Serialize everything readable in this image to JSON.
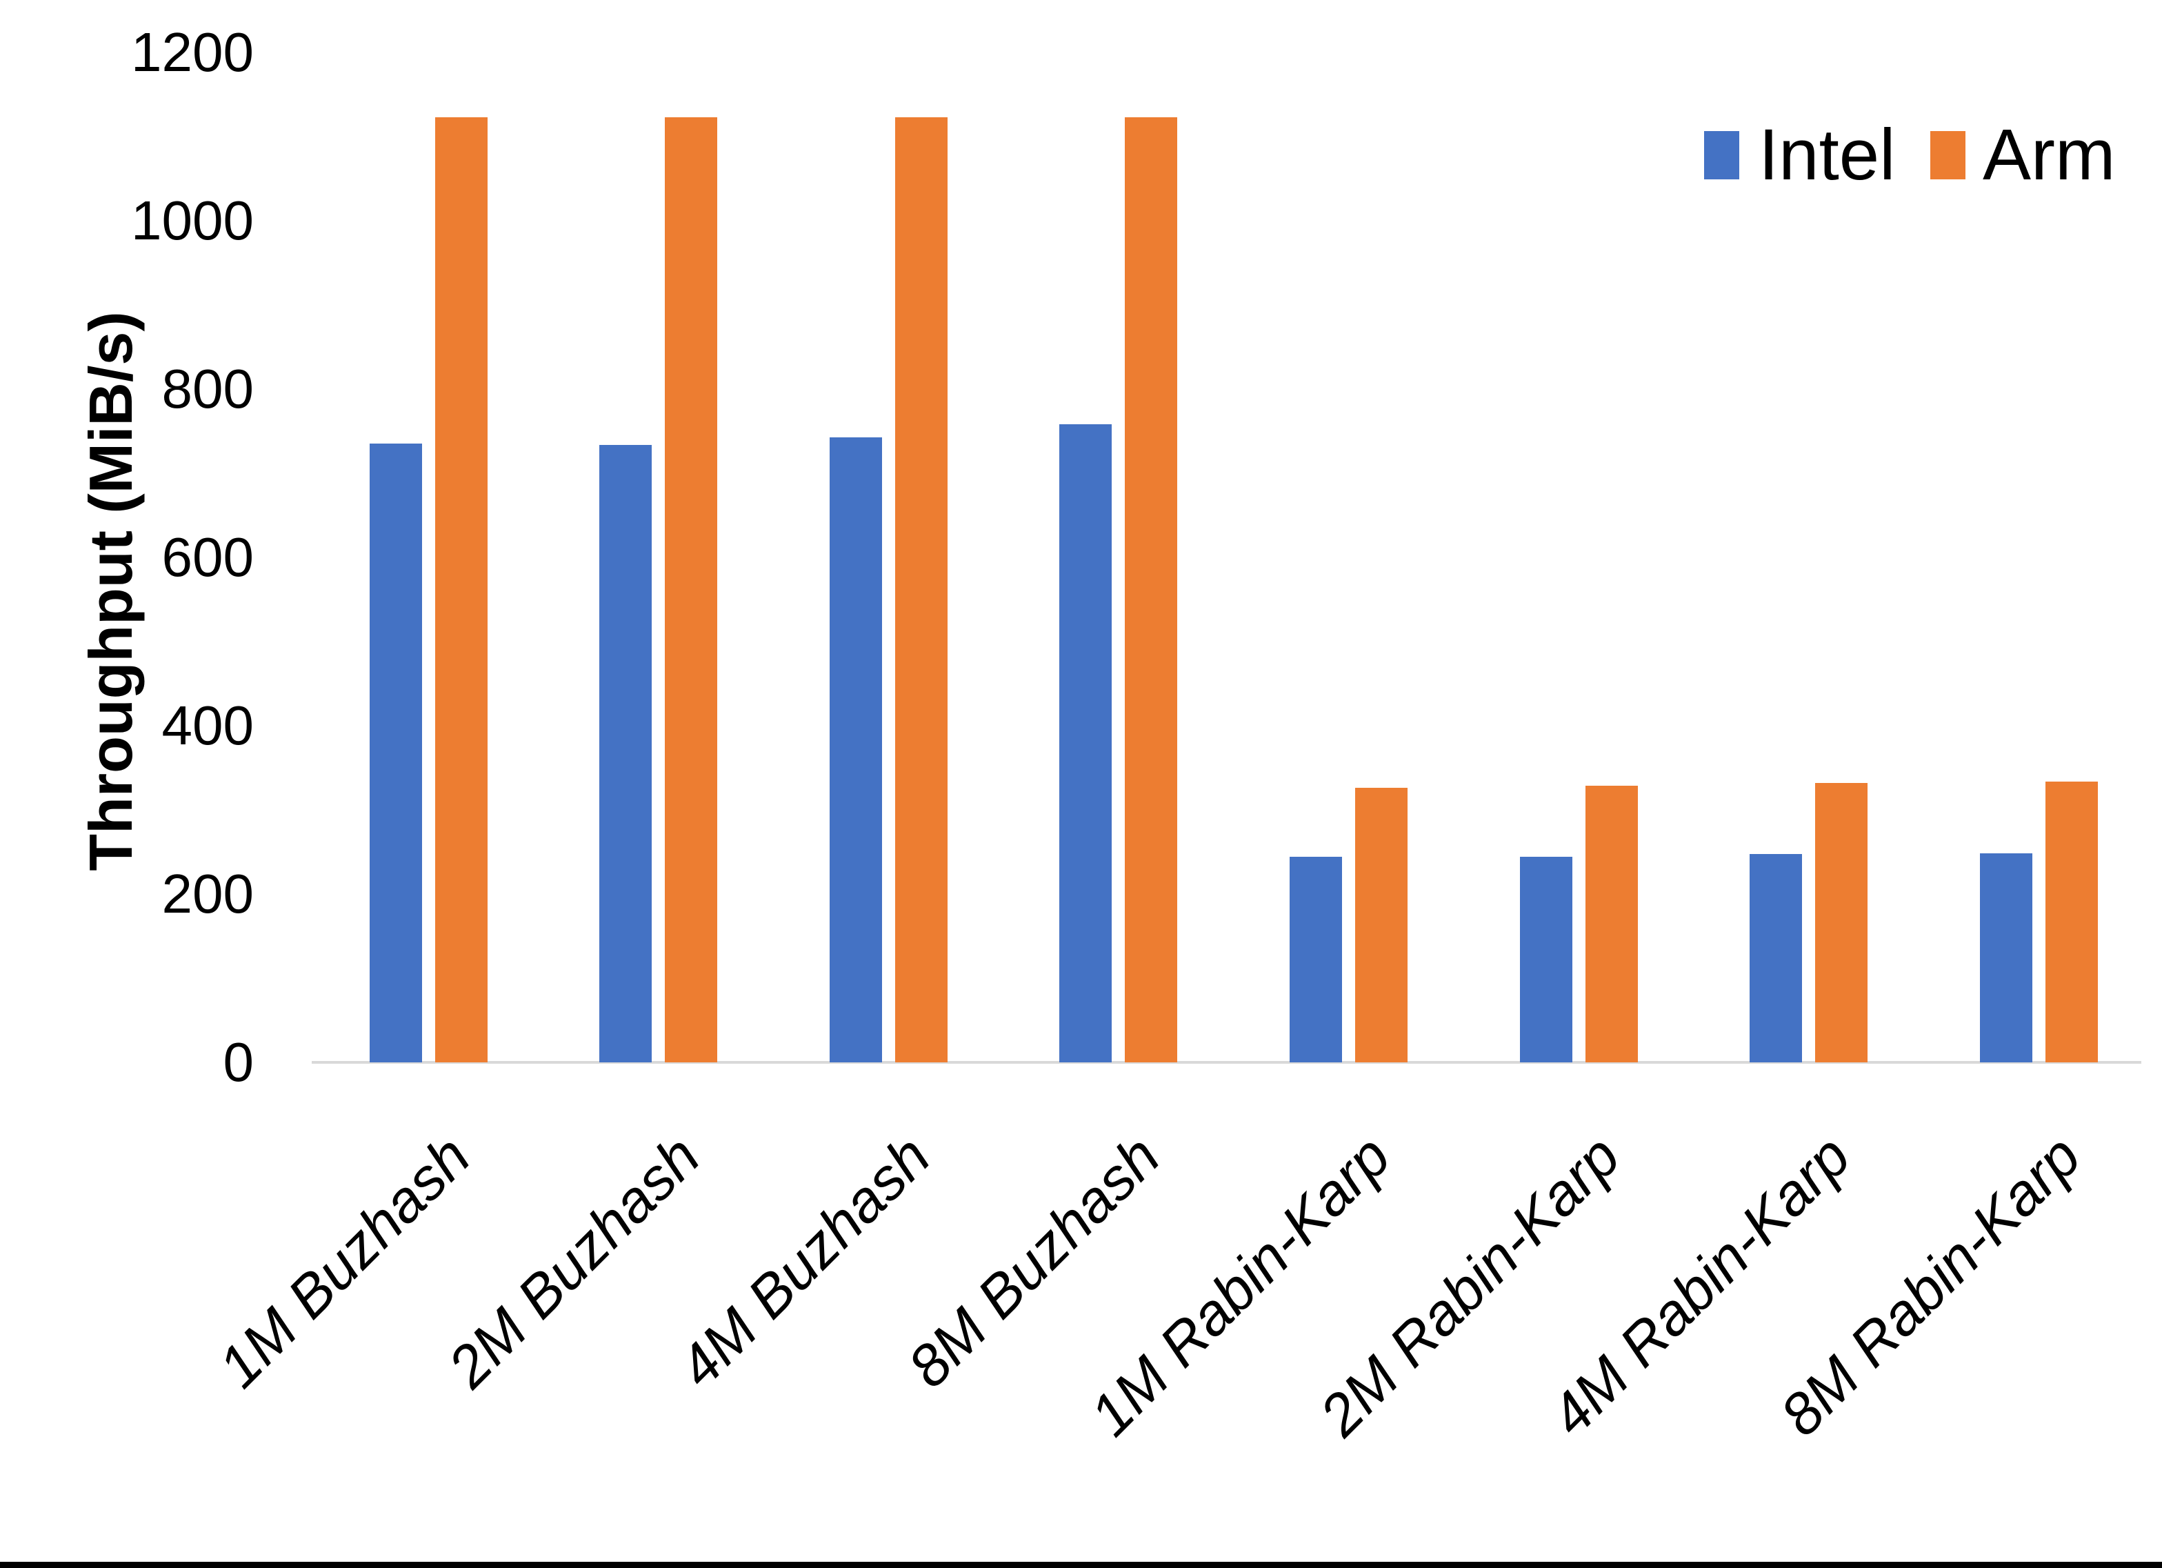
{
  "chart_data": {
    "type": "bar",
    "title": "",
    "xlabel": "",
    "ylabel": "Throughput (MiB/s)",
    "categories": [
      "1M Buzhash",
      "2M Buzhash",
      "4M Buzhash",
      "8M Buzhash",
      "1M Rabin-Karp",
      "2M Rabin-Karp",
      "4M Rabin-Karp",
      "8M Rabin-Karp"
    ],
    "series": [
      {
        "name": "Intel",
        "color": "#4472C4",
        "values": [
          733,
          732,
          741,
          756,
          244,
          244,
          247,
          248
        ]
      },
      {
        "name": "Arm",
        "color": "#ED7D31",
        "values": [
          1120,
          1120,
          1120,
          1120,
          325,
          328,
          331,
          333
        ]
      }
    ],
    "ylim": [
      0,
      1200
    ],
    "ytick_step": 200,
    "ytick_labels": [
      "1200",
      "1000",
      "800",
      "600",
      "400",
      "200",
      "0"
    ],
    "grid": false,
    "legend_position": "top-right"
  },
  "colors": {
    "background": "#FFFFFF",
    "text": "#000000",
    "axis_line": "#D9D9D9",
    "bottom_bar": "#000000"
  }
}
